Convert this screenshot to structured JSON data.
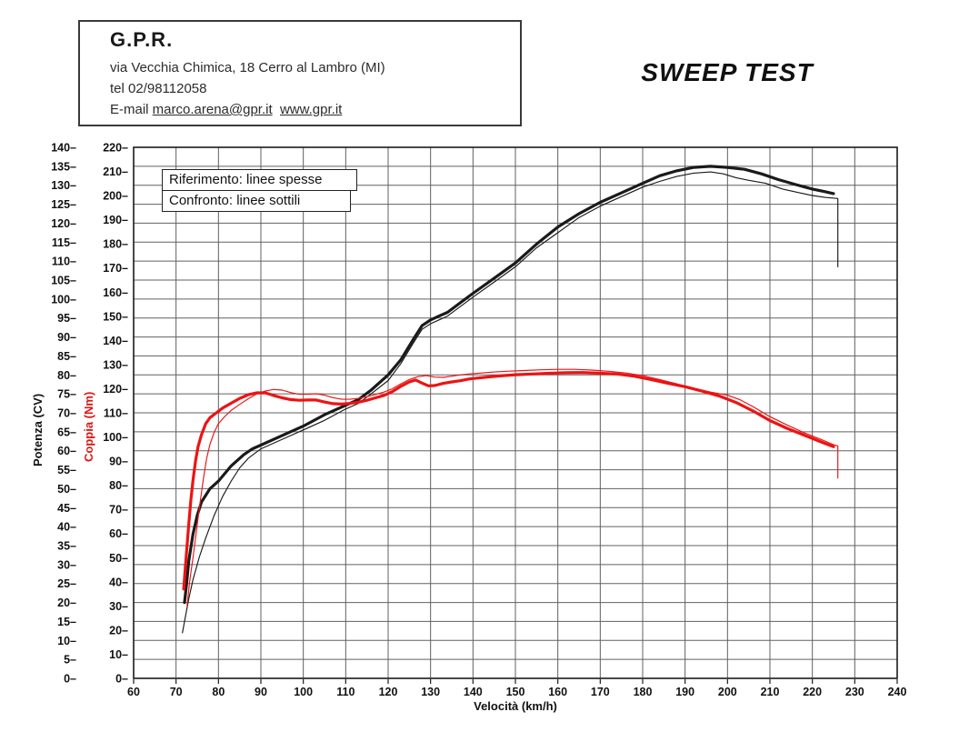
{
  "header": {
    "company": "G.P.R.",
    "address": "via Vecchia Chimica, 18 Cerro al Lambro (MI)",
    "phone": "tel 02/98112058",
    "email_prefix": "E-mail ",
    "email": "marco.arena@gpr.it",
    "website": "www.gpr.it"
  },
  "title": "SWEEP TEST",
  "legend": {
    "reference": "Riferimento: linee spesse",
    "comparison": "Confronto: linee sottili"
  },
  "colors": {
    "power": "#1a1a1a",
    "torque": "#ec1313",
    "grid": "#606060",
    "frame": "#1a1a1a",
    "tick_text": "#111111"
  },
  "chart_data": {
    "type": "line",
    "title": "SWEEP TEST",
    "xlabel": "Velocità (km/h)",
    "ylabel_left": "Potenza (CV)",
    "ylabel_right": "Coppia (Nm)",
    "x_range": [
      60,
      240
    ],
    "x_step": 10,
    "cv_range": [
      0,
      140
    ],
    "cv_step": 5,
    "nm_range": [
      0,
      220
    ],
    "nm_step": 10,
    "y_tick_suffix": "–",
    "grid": true,
    "legend_position": "top-left overlay",
    "series": [
      {
        "name": "Potenza Riferimento",
        "axis": "cv",
        "style": "thick",
        "color": "#1a1a1a",
        "points": [
          [
            72,
            20
          ],
          [
            72.5,
            25
          ],
          [
            73,
            31
          ],
          [
            74,
            38
          ],
          [
            75,
            43
          ],
          [
            76,
            46.5
          ],
          [
            78,
            50
          ],
          [
            80,
            52
          ],
          [
            83,
            56
          ],
          [
            86,
            59
          ],
          [
            88,
            60.5
          ],
          [
            90,
            61.5
          ],
          [
            93,
            63
          ],
          [
            96,
            64.5
          ],
          [
            100,
            66.5
          ],
          [
            105,
            69.5
          ],
          [
            110,
            72
          ],
          [
            113,
            73.5
          ],
          [
            116,
            76
          ],
          [
            120,
            80
          ],
          [
            123,
            84
          ],
          [
            126,
            89.5
          ],
          [
            128,
            93
          ],
          [
            130,
            94.5
          ],
          [
            132,
            95.5
          ],
          [
            134,
            96.5
          ],
          [
            137,
            99
          ],
          [
            140,
            101.5
          ],
          [
            145,
            105.5
          ],
          [
            150,
            109.5
          ],
          [
            155,
            114.5
          ],
          [
            160,
            119
          ],
          [
            165,
            122.5
          ],
          [
            170,
            125.5
          ],
          [
            175,
            128
          ],
          [
            180,
            130.5
          ],
          [
            184,
            132.5
          ],
          [
            188,
            133.8
          ],
          [
            192,
            134.7
          ],
          [
            196,
            135
          ],
          [
            200,
            134.7
          ],
          [
            204,
            134.2
          ],
          [
            208,
            133
          ],
          [
            212,
            131.5
          ],
          [
            216,
            130.2
          ],
          [
            220,
            129
          ],
          [
            223,
            128.3
          ],
          [
            225,
            127.8
          ]
        ]
      },
      {
        "name": "Potenza Confronto",
        "axis": "cv",
        "style": "thin",
        "color": "#1a1a1a",
        "points": [
          [
            71.5,
            12
          ],
          [
            72,
            15
          ],
          [
            73,
            21
          ],
          [
            74,
            26
          ],
          [
            75.5,
            32
          ],
          [
            77,
            37
          ],
          [
            79,
            43
          ],
          [
            81,
            48
          ],
          [
            83,
            52
          ],
          [
            85,
            55.5
          ],
          [
            87,
            58
          ],
          [
            90,
            60.5
          ],
          [
            93,
            62
          ],
          [
            96,
            63.5
          ],
          [
            100,
            65.5
          ],
          [
            105,
            68
          ],
          [
            110,
            71
          ],
          [
            113,
            72.5
          ],
          [
            116,
            75
          ],
          [
            120,
            78.5
          ],
          [
            123,
            83
          ],
          [
            126,
            88.5
          ],
          [
            128,
            92
          ],
          [
            130,
            93.5
          ],
          [
            132,
            94.5
          ],
          [
            134,
            95.5
          ],
          [
            137,
            98
          ],
          [
            140,
            100.5
          ],
          [
            145,
            104.5
          ],
          [
            150,
            108.5
          ],
          [
            155,
            113.5
          ],
          [
            160,
            117.5
          ],
          [
            165,
            121.5
          ],
          [
            170,
            124.5
          ],
          [
            175,
            127
          ],
          [
            180,
            129.5
          ],
          [
            184,
            131
          ],
          [
            188,
            132.3
          ],
          [
            192,
            133.2
          ],
          [
            196,
            133.5
          ],
          [
            199,
            133
          ],
          [
            202,
            132
          ],
          [
            205,
            131.3
          ],
          [
            209,
            130.5
          ],
          [
            213,
            129
          ],
          [
            217,
            128
          ],
          [
            220,
            127.3
          ],
          [
            223,
            126.8
          ],
          [
            226,
            126.5
          ],
          [
            226,
            108.5
          ]
        ]
      },
      {
        "name": "Coppia Riferimento",
        "axis": "nm",
        "style": "thick",
        "color": "#ec1313",
        "points": [
          [
            71.8,
            37
          ],
          [
            72.2,
            46
          ],
          [
            72.6,
            55
          ],
          [
            73,
            64
          ],
          [
            73.5,
            74
          ],
          [
            74,
            82
          ],
          [
            74.6,
            90
          ],
          [
            75.2,
            96
          ],
          [
            76,
            101
          ],
          [
            77,
            105.5
          ],
          [
            78,
            108
          ],
          [
            79.5,
            110
          ],
          [
            81,
            112
          ],
          [
            83,
            114
          ],
          [
            85,
            116
          ],
          [
            87,
            117.5
          ],
          [
            89,
            118.3
          ],
          [
            91,
            118.3
          ],
          [
            93,
            117.2
          ],
          [
            95,
            116.2
          ],
          [
            97,
            115.5
          ],
          [
            99,
            115.2
          ],
          [
            101,
            115.3
          ],
          [
            103,
            115.3
          ],
          [
            105,
            114.5
          ],
          [
            107,
            113.8
          ],
          [
            109,
            113.6
          ],
          [
            111,
            113.9
          ],
          [
            113,
            114.4
          ],
          [
            115,
            115.2
          ],
          [
            117,
            116.2
          ],
          [
            119,
            117.2
          ],
          [
            121,
            118.8
          ],
          [
            123,
            121
          ],
          [
            125,
            122.8
          ],
          [
            126.5,
            123.6
          ],
          [
            128,
            122.3
          ],
          [
            129.5,
            121.2
          ],
          [
            131,
            121.3
          ],
          [
            133,
            122.2
          ],
          [
            135,
            122.8
          ],
          [
            137,
            123.3
          ],
          [
            139,
            124
          ],
          [
            141,
            124.4
          ],
          [
            144,
            124.9
          ],
          [
            147,
            125.4
          ],
          [
            150,
            125.8
          ],
          [
            154,
            126.1
          ],
          [
            158,
            126.4
          ],
          [
            162,
            126.6
          ],
          [
            166,
            126.7
          ],
          [
            170,
            126.4
          ],
          [
            174,
            126.1
          ],
          [
            178,
            125.2
          ],
          [
            182,
            123.8
          ],
          [
            186,
            122.2
          ],
          [
            190,
            120.8
          ],
          [
            194,
            119
          ],
          [
            198,
            117
          ],
          [
            202,
            114.3
          ],
          [
            206,
            110.8
          ],
          [
            210,
            106.8
          ],
          [
            214,
            103.6
          ],
          [
            218,
            100.8
          ],
          [
            222,
            98
          ],
          [
            225,
            96
          ]
        ]
      },
      {
        "name": "Coppia Confronto",
        "axis": "nm",
        "style": "thin",
        "color": "#ec1313",
        "points": [
          [
            72.6,
            30
          ],
          [
            73.2,
            40
          ],
          [
            74,
            50
          ],
          [
            74.8,
            61
          ],
          [
            75.6,
            72
          ],
          [
            76.4,
            82
          ],
          [
            77.2,
            91
          ],
          [
            78,
            97
          ],
          [
            79,
            102
          ],
          [
            80,
            105.5
          ],
          [
            81.5,
            108.5
          ],
          [
            83,
            111
          ],
          [
            85,
            113.5
          ],
          [
            87,
            115.8
          ],
          [
            89,
            117.8
          ],
          [
            91,
            119
          ],
          [
            93,
            119.7
          ],
          [
            95,
            119.4
          ],
          [
            97,
            118.4
          ],
          [
            99,
            117.7
          ],
          [
            101,
            117.7
          ],
          [
            103,
            117.9
          ],
          [
            105,
            117.3
          ],
          [
            107,
            116.3
          ],
          [
            109,
            115.6
          ],
          [
            111,
            115.6
          ],
          [
            113,
            116
          ],
          [
            115,
            116.7
          ],
          [
            117,
            117.6
          ],
          [
            119,
            118.6
          ],
          [
            121,
            120
          ],
          [
            123,
            122
          ],
          [
            125,
            123.8
          ],
          [
            127,
            125
          ],
          [
            129,
            125.4
          ],
          [
            131,
            124.8
          ],
          [
            133,
            124.7
          ],
          [
            135,
            125.2
          ],
          [
            137,
            125.7
          ],
          [
            139,
            126.1
          ],
          [
            142,
            126.5
          ],
          [
            145,
            126.9
          ],
          [
            148,
            127.2
          ],
          [
            152,
            127.5
          ],
          [
            156,
            127.8
          ],
          [
            160,
            128
          ],
          [
            164,
            128
          ],
          [
            168,
            127.7
          ],
          [
            172,
            127.2
          ],
          [
            176,
            126.5
          ],
          [
            180,
            125.4
          ],
          [
            184,
            123.8
          ],
          [
            188,
            122
          ],
          [
            192,
            120.2
          ],
          [
            196,
            118.6
          ],
          [
            200,
            117.3
          ],
          [
            203,
            115.4
          ],
          [
            206,
            112.6
          ],
          [
            210,
            108.4
          ],
          [
            214,
            105
          ],
          [
            218,
            101.8
          ],
          [
            222,
            99
          ],
          [
            225,
            96.8
          ],
          [
            226,
            96.3
          ],
          [
            226,
            83
          ]
        ]
      }
    ]
  }
}
